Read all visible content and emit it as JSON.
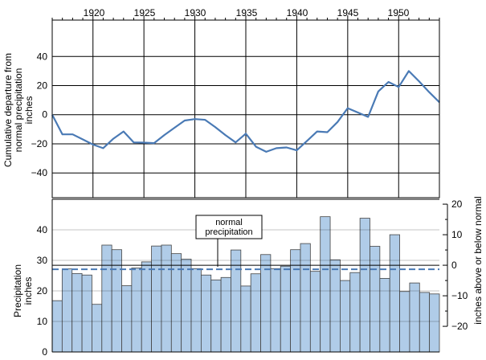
{
  "chart_data": [
    {
      "type": "line",
      "top_axis_tick_labels": [
        "1920",
        "1925",
        "1930",
        "1935",
        "1940",
        "1945",
        "1950"
      ],
      "ylabel": [
        "Cumulative departure from",
        "normal precipitation",
        "inches"
      ],
      "ylim": [
        -57,
        65
      ],
      "yticks": [
        40,
        20,
        0,
        -20,
        -40
      ],
      "ytick_labels": [
        "40",
        "20",
        "0",
        "−20",
        "−40"
      ],
      "grid": true,
      "line_color": "#4a7ab5",
      "x": [
        1916,
        1917,
        1918,
        1919,
        1920,
        1921,
        1922,
        1923,
        1924,
        1925,
        1926,
        1927,
        1928,
        1929,
        1930,
        1931,
        1932,
        1933,
        1934,
        1935,
        1936,
        1937,
        1938,
        1939,
        1940,
        1941,
        1942,
        1943,
        1944,
        1945,
        1946,
        1947,
        1948,
        1949,
        1950,
        1951,
        1952,
        1953,
        1954
      ],
      "y": [
        0,
        -13.5,
        -13.5,
        -17,
        -20.5,
        -23,
        -16.5,
        -11.5,
        -19,
        -19.2,
        -19.5,
        -14,
        -9,
        -4,
        -3,
        -3.5,
        -8.5,
        -14,
        -19,
        -13,
        -22,
        -25.5,
        -23,
        -22.5,
        -24.5,
        -18,
        -11.5,
        -12,
        -5,
        4.5,
        1.5,
        -1.5,
        16,
        22.5,
        19,
        30,
        23,
        15.5,
        8.5
      ]
    },
    {
      "type": "bar",
      "ylabel": [
        "Precipitation",
        "inches"
      ],
      "y2label": "inches above or below normal",
      "ylim": [
        0,
        50
      ],
      "yticks": [
        0,
        10,
        20,
        30,
        40
      ],
      "ytick_labels": [
        "0",
        "10",
        "20",
        "30",
        "40"
      ],
      "y2ticks": [
        20,
        10,
        0,
        -10,
        -20
      ],
      "y2tick_labels": [
        "20",
        "10",
        "0",
        "−10",
        "−20"
      ],
      "normal_precipitation": 28.4,
      "annotation": [
        "normal",
        "precipitation"
      ],
      "bar_color": "#b0cce8",
      "normal_line_color": "#4a7ab5",
      "x": [
        1916,
        1917,
        1918,
        1919,
        1920,
        1921,
        1922,
        1923,
        1924,
        1925,
        1926,
        1927,
        1928,
        1929,
        1930,
        1931,
        1932,
        1933,
        1934,
        1935,
        1936,
        1937,
        1938,
        1939,
        1940,
        1941,
        1942,
        1943,
        1944,
        1945,
        1946,
        1947,
        1948,
        1949,
        1950,
        1951,
        1952,
        1953,
        1954
      ],
      "values": [
        16.8,
        27.2,
        25.7,
        25.2,
        15.6,
        35,
        33.5,
        21.7,
        27.5,
        29.5,
        34.7,
        35,
        32.2,
        30.4,
        27.3,
        25.2,
        23.6,
        24.4,
        33.4,
        21.6,
        25.6,
        31.9,
        27.3,
        28.1,
        33.5,
        35.5,
        26.4,
        44.3,
        30.2,
        23.4,
        26,
        43.8,
        34.6,
        24.1,
        38.4,
        19.8,
        22.6,
        19.5,
        19
      ]
    }
  ]
}
